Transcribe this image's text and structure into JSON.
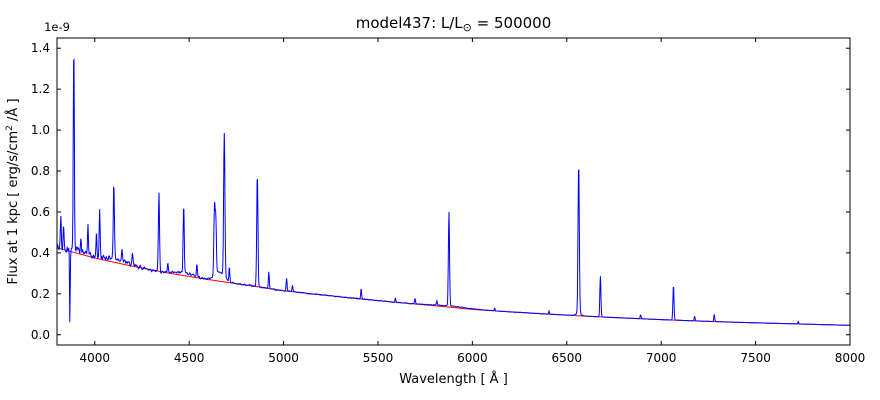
{
  "figure": {
    "background": "#ffffff",
    "frame_color": "#000000",
    "offset_label": "1e-9"
  },
  "chart_data": {
    "type": "line",
    "title": {
      "prefix": "model437: L/L",
      "subscript": "⊙",
      "suffix": " = 500000"
    },
    "xlabel": "Wavelength [ Å ]",
    "ylabel": {
      "prefix": "Flux at 1 kpc [ erg/s/cm",
      "superscript": "2",
      "suffix": " /Å ]"
    },
    "y_scale_factor": "1e-9",
    "xlim": [
      3800,
      8000
    ],
    "ylim": [
      -0.05,
      1.45
    ],
    "xticks": [
      4000,
      4500,
      5000,
      5500,
      6000,
      6500,
      7000,
      7500,
      8000
    ],
    "yticks": [
      0.0,
      0.2,
      0.4,
      0.6,
      0.8,
      1.0,
      1.2,
      1.4
    ],
    "grid": false,
    "legend": null,
    "series": [
      {
        "name": "continuum-fit",
        "color": "#ff0000",
        "line_width": 1
      },
      {
        "name": "model-spectrum",
        "color": "#0000ff",
        "line_width": 1
      }
    ],
    "continuum_points": {
      "x": [
        3800,
        4000,
        4200,
        4400,
        4600,
        4800,
        5000,
        5200,
        5400,
        5600,
        5800,
        6000,
        6200,
        6400,
        6600,
        6800,
        7000,
        7200,
        7400,
        7600,
        7800,
        8000
      ],
      "y": [
        0.425,
        0.375,
        0.335,
        0.3,
        0.27,
        0.243,
        0.215,
        0.195,
        0.176,
        0.158,
        0.142,
        0.124,
        0.112,
        0.101,
        0.091,
        0.082,
        0.074,
        0.067,
        0.061,
        0.056,
        0.051,
        0.046
      ]
    },
    "emission_lines": [
      [
        3820,
        0.16,
        2.2
      ],
      [
        3835,
        0.12,
        2.2
      ],
      [
        3868,
        -0.36,
        1.8
      ],
      [
        3889,
        0.97,
        2.8
      ],
      [
        3926,
        0.06,
        2.2
      ],
      [
        3964,
        0.15,
        2.4
      ],
      [
        4009,
        0.12,
        2.4
      ],
      [
        4026,
        0.23,
        2.6
      ],
      [
        4101,
        0.36,
        3.0
      ],
      [
        4144,
        0.05,
        2.4
      ],
      [
        4200,
        0.05,
        2.4
      ],
      [
        4340,
        0.38,
        3.0
      ],
      [
        4387,
        0.04,
        2.4
      ],
      [
        4471,
        0.33,
        2.8
      ],
      [
        4541,
        0.06,
        2.4
      ],
      [
        4634,
        0.33,
        3.2
      ],
      [
        4641,
        0.26,
        3.2
      ],
      [
        4686,
        0.7,
        3.4
      ],
      [
        4713,
        0.07,
        2.4
      ],
      [
        4861,
        0.55,
        3.2
      ],
      [
        4922,
        0.08,
        2.4
      ],
      [
        5016,
        0.06,
        2.4
      ],
      [
        5047,
        0.03,
        2.4
      ],
      [
        5411,
        0.05,
        2.4
      ],
      [
        5592,
        0.022,
        2.4
      ],
      [
        5696,
        0.028,
        2.4
      ],
      [
        5812,
        0.02,
        2.4
      ],
      [
        5876,
        0.46,
        3.0
      ],
      [
        6118,
        0.012,
        2.4
      ],
      [
        6406,
        0.015,
        2.4
      ],
      [
        6563,
        0.73,
        3.4
      ],
      [
        6678,
        0.2,
        2.8
      ],
      [
        6891,
        0.02,
        2.4
      ],
      [
        7065,
        0.17,
        2.8
      ],
      [
        7177,
        0.022,
        2.4
      ],
      [
        7281,
        0.035,
        2.4
      ],
      [
        7726,
        0.012,
        2.4
      ]
    ],
    "broad_components": [
      [
        4660,
        0.045,
        26
      ],
      [
        4480,
        0.015,
        45
      ],
      [
        4110,
        0.02,
        60
      ],
      [
        3900,
        0.02,
        40
      ],
      [
        5890,
        0.006,
        90
      ],
      [
        6563,
        0.012,
        14
      ]
    ],
    "noise": {
      "seed": 42,
      "step": 2,
      "base_frac": 0.015,
      "blue_frac": 0.05,
      "decay": 500
    }
  }
}
